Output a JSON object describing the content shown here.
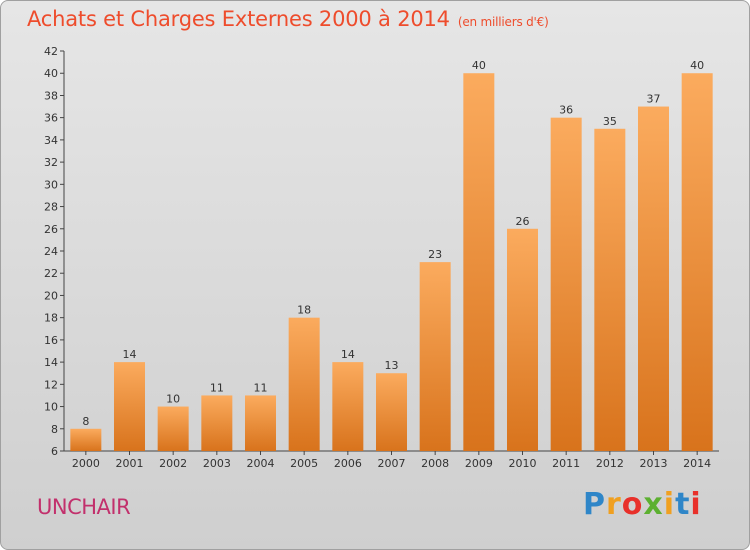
{
  "header": {
    "title": "Achats et Charges Externes 2000 à 2014",
    "subtitle": "(en milliers d'€)"
  },
  "footer": {
    "commune": "UNCHAIR",
    "logo": "Proxiti",
    "logo_colors": [
      "#2f86c8",
      "#f0a020",
      "#e8302a",
      "#5cb030",
      "#f0a020",
      "#2f86c8",
      "#e8302a"
    ]
  },
  "colors": {
    "bar_light": "#fbab5e",
    "bar_dark": "#d8731c",
    "title": "#ee4c2c",
    "commune": "#c2306c"
  },
  "chart_data": {
    "type": "bar",
    "title": "Achats et Charges Externes 2000 à 2014",
    "subtitle": "(en milliers d'€)",
    "categories": [
      "2000",
      "2001",
      "2002",
      "2003",
      "2004",
      "2005",
      "2006",
      "2007",
      "2008",
      "2009",
      "2010",
      "2011",
      "2012",
      "2013",
      "2014"
    ],
    "values": [
      8,
      14,
      10,
      11,
      11,
      18,
      14,
      13,
      23,
      40,
      26,
      36,
      35,
      37,
      40
    ],
    "ylim": [
      6,
      42
    ],
    "yticks": [
      6,
      8,
      10,
      12,
      14,
      16,
      18,
      20,
      22,
      24,
      26,
      28,
      30,
      32,
      34,
      36,
      38,
      40,
      42
    ],
    "grid": false,
    "data_labels": true
  }
}
